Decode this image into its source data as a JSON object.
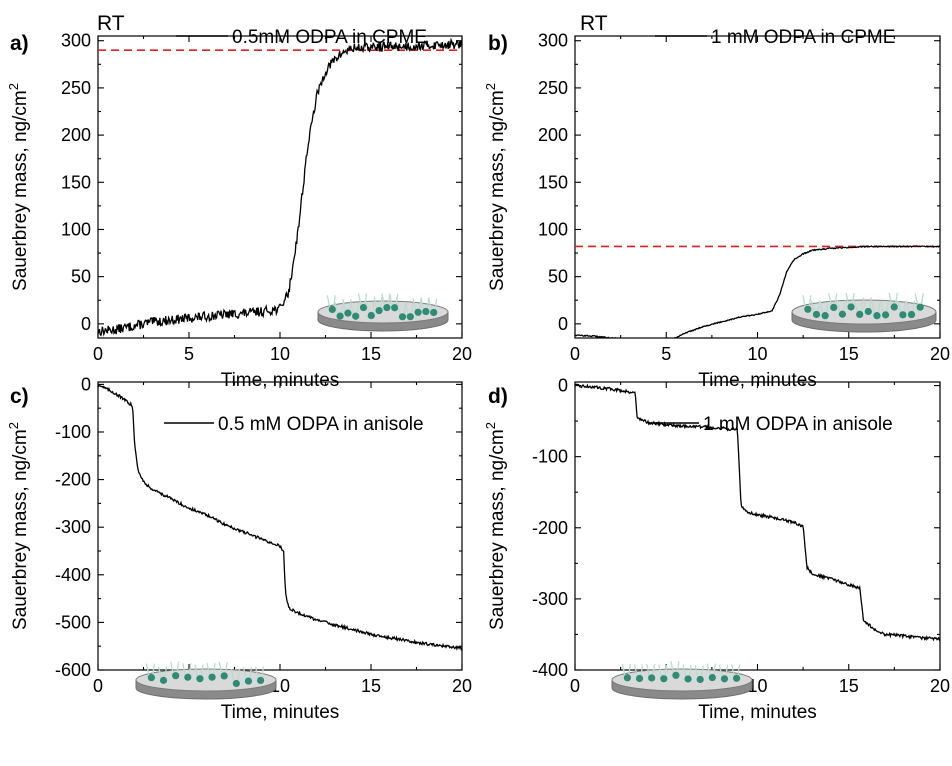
{
  "chart_data": [
    {
      "panel": "a)",
      "type": "line",
      "corner_label": "RT",
      "xlabel": "Time, minutes",
      "ylabel": "Sauerbrey mass, ng/cm",
      "ylabel_sup": "2",
      "xlim": [
        0,
        20
      ],
      "ylim": [
        -15,
        305
      ],
      "xticks": [
        0,
        5,
        10,
        15,
        20
      ],
      "yticks": [
        0,
        50,
        100,
        150,
        200,
        250,
        300
      ],
      "reference_line": {
        "y": 290,
        "color": "#e02020",
        "style": "dashed"
      },
      "series": [
        {
          "name": "0.5mM ODPA in CPME",
          "color": "#000000",
          "x": [
            0,
            1,
            2,
            3,
            4,
            5,
            6,
            7,
            8,
            9,
            10,
            10.5,
            11,
            11.5,
            12,
            12.5,
            13,
            13.5,
            14,
            15,
            16,
            17,
            18,
            19,
            20
          ],
          "y": [
            -8,
            -6,
            -2,
            2,
            4,
            6,
            8,
            10,
            11,
            13,
            16,
            35,
            100,
            185,
            240,
            268,
            280,
            288,
            292,
            293,
            294,
            294,
            295,
            296,
            296
          ]
        }
      ],
      "noise": 5
    },
    {
      "panel": "b)",
      "type": "line",
      "corner_label": "RT",
      "xlabel": "Time, minutes",
      "ylabel": "Sauerbrey mass, ng/cm",
      "ylabel_sup": "2",
      "xlim": [
        0,
        20
      ],
      "ylim": [
        -15,
        305
      ],
      "xticks": [
        0,
        5,
        10,
        15,
        20
      ],
      "yticks": [
        0,
        50,
        100,
        150,
        200,
        250,
        300
      ],
      "reference_line": {
        "y": 82,
        "color": "#e02020",
        "style": "dashed"
      },
      "series": [
        {
          "name": "1 mM ODPA in CPME",
          "color": "#000000",
          "x": [
            0,
            1,
            2,
            3,
            4,
            5,
            5.5,
            6,
            7,
            8,
            9,
            10,
            10.8,
            11.2,
            11.6,
            12,
            12.5,
            13,
            14,
            15,
            16,
            17,
            18,
            19,
            20
          ],
          "y": [
            -12,
            -13,
            -15,
            -16,
            -17,
            -17,
            -15,
            -10,
            -3,
            2,
            7,
            10,
            14,
            30,
            55,
            68,
            74,
            78,
            80,
            81,
            82,
            82,
            82,
            82,
            82
          ]
        }
      ],
      "noise": 0.6
    },
    {
      "panel": "c)",
      "type": "line",
      "xlabel": "Time, minutes",
      "ylabel": "Sauerbrey mass, ng/cm",
      "ylabel_sup": "2",
      "xlim": [
        0,
        20
      ],
      "ylim": [
        -600,
        5
      ],
      "xticks": [
        0,
        5,
        10,
        15,
        20
      ],
      "yticks": [
        0,
        -100,
        -200,
        -300,
        -400,
        -500,
        -600
      ],
      "series": [
        {
          "name": "0.5 mM ODPA in anisole",
          "color": "#000000",
          "x": [
            0,
            1,
            1.9,
            2.0,
            2.2,
            2.6,
            3,
            4,
            5,
            6,
            7,
            8,
            9,
            10,
            10.2,
            10.3,
            10.5,
            11,
            12,
            13,
            14,
            15,
            16,
            17,
            18,
            19,
            20
          ],
          "y": [
            0,
            -20,
            -45,
            -120,
            -180,
            -210,
            -220,
            -240,
            -260,
            -275,
            -295,
            -310,
            -325,
            -340,
            -350,
            -440,
            -470,
            -480,
            -495,
            -505,
            -515,
            -525,
            -532,
            -538,
            -545,
            -550,
            -555
          ]
        }
      ],
      "noise": 3
    },
    {
      "panel": "d)",
      "type": "line",
      "xlabel": "Time, minutes",
      "ylabel": "Sauerbrey mass, ng/cm",
      "ylabel_sup": "2",
      "xlim": [
        0,
        20
      ],
      "ylim": [
        -400,
        5
      ],
      "xticks": [
        0,
        5,
        10,
        15,
        20
      ],
      "yticks": [
        0,
        -100,
        -200,
        -300,
        -400
      ],
      "series": [
        {
          "name": "1 mM ODPA in anisole",
          "color": "#000000",
          "x": [
            0,
            1,
            2,
            3.3,
            3.4,
            4,
            5,
            6,
            7,
            8,
            8.9,
            9.1,
            9.5,
            10,
            11,
            12,
            12.5,
            12.7,
            13,
            14,
            15,
            15.6,
            15.8,
            16.5,
            17,
            18,
            19,
            20
          ],
          "y": [
            0,
            -2,
            -5,
            -10,
            -45,
            -52,
            -55,
            -57,
            -58,
            -60,
            -62,
            -170,
            -178,
            -182,
            -186,
            -193,
            -198,
            -255,
            -265,
            -272,
            -280,
            -285,
            -330,
            -345,
            -350,
            -352,
            -355,
            -356
          ]
        }
      ],
      "noise": 2
    }
  ]
}
